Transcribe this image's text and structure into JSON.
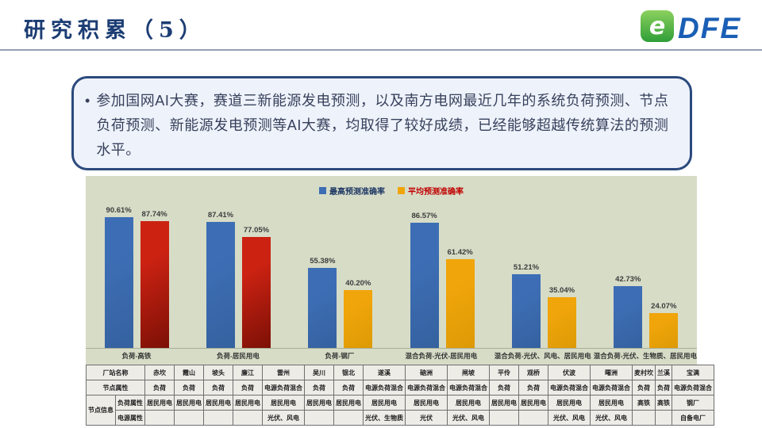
{
  "slide": {
    "title": "研究积累（5）",
    "accent_color": "#1c3d74",
    "bullet_text": "参加国网AI大赛，赛道三新能源发电预测，以及南方电网最近几年的系统负荷预测、节点负荷预测、新能源发电预测等AI大赛，均取得了较好成绩，已经能够超越传统算法的预测水平。"
  },
  "logo": {
    "text": "DFE",
    "icon": "green-swirl-e-icon",
    "icon_colors": [
      "#8bd15e",
      "#2f9e38"
    ],
    "text_color": "#1a5fb5"
  },
  "chart_data": {
    "type": "bar",
    "title": "",
    "categories": [
      "负荷-高铁",
      "负荷-居民用电",
      "负荷-钢厂",
      "混合负荷-光伏-居民用电",
      "混合负荷-光伏、风电、居民用电",
      "混合负荷-光伏、生物质、居民用电"
    ],
    "series": [
      {
        "name": "最高预测准确率",
        "color": "#3d6eb5",
        "color_dark": "#35619f",
        "values": [
          90.61,
          87.41,
          55.38,
          86.57,
          51.21,
          42.73
        ]
      },
      {
        "name": "平均预测准确率",
        "color": "#f0a50a",
        "colors": [
          "#cc2212",
          "#cc2212",
          "#f0a50a",
          "#f0a50a",
          "#f0a50a",
          "#f0a50a"
        ],
        "colors_dark": [
          "#7c1006",
          "#7c1006",
          "#dd9a06",
          "#dd9a06",
          "#dd9a06",
          "#dd9a06"
        ],
        "values": [
          87.74,
          77.05,
          40.2,
          61.42,
          35.04,
          24.07
        ]
      }
    ],
    "ylim": [
      0,
      100
    ],
    "grid": false,
    "legend_position": "top-center",
    "legend_text_colors": [
      "#1f3864",
      "#c00000"
    ],
    "value_label_format": "0.00%",
    "plot_background": "#d7dcc7"
  },
  "table": {
    "corner_label": "节点信息",
    "row_headers": [
      "厂站名称",
      "节点属性",
      "负荷属性",
      "电源属性"
    ],
    "stations": [
      {
        "name": "赤坎",
        "node": "负荷",
        "load": "居民用电",
        "power": ""
      },
      {
        "name": "霞山",
        "node": "负荷",
        "load": "居民用电",
        "power": ""
      },
      {
        "name": "坡头",
        "node": "负荷",
        "load": "居民用电",
        "power": ""
      },
      {
        "name": "廉江",
        "node": "负荷",
        "load": "居民用电",
        "power": ""
      },
      {
        "name": "雷州",
        "node": "电源负荷混合",
        "load": "居民用电",
        "power": "光伏、风电"
      },
      {
        "name": "吴川",
        "node": "负荷",
        "load": "居民用电",
        "power": ""
      },
      {
        "name": "银北",
        "node": "负荷",
        "load": "居民用电",
        "power": ""
      },
      {
        "name": "遂溪",
        "node": "电源负荷混合",
        "load": "居民用电",
        "power": "光伏、生物质"
      },
      {
        "name": "硇洲",
        "node": "电源负荷混合",
        "load": "居民用电",
        "power": "光伏"
      },
      {
        "name": "闸坡",
        "node": "电源负荷混合",
        "load": "居民用电",
        "power": "光伏、风电"
      },
      {
        "name": "平伶",
        "node": "负荷",
        "load": "居民用电",
        "power": ""
      },
      {
        "name": "观桥",
        "node": "负荷",
        "load": "居民用电",
        "power": ""
      },
      {
        "name": "伏波",
        "node": "电源负荷混合",
        "load": "居民用电",
        "power": "光伏、风电"
      },
      {
        "name": "曙洲",
        "node": "电源负荷混合",
        "load": "居民用电",
        "power": "光伏、风电"
      },
      {
        "name": "麦村坎",
        "node": "负荷",
        "load": "高铁",
        "power": ""
      },
      {
        "name": "兰溪",
        "node": "负荷",
        "load": "高铁",
        "power": ""
      },
      {
        "name": "宝满",
        "node": "电源负荷混合",
        "load": "钢厂",
        "power": "自备电厂"
      }
    ]
  }
}
